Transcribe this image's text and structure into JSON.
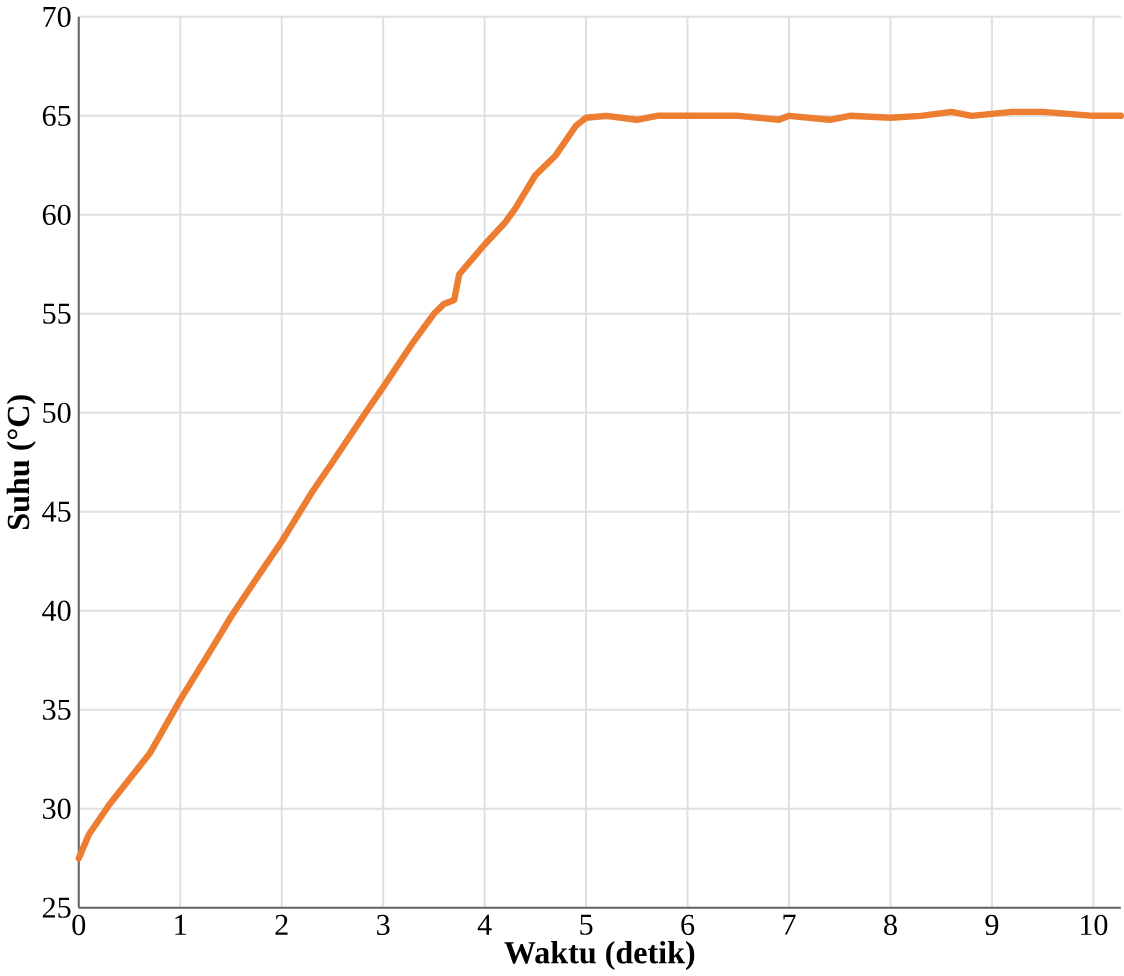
{
  "chart_data": {
    "type": "line",
    "xlabel": "Waktu (detik)",
    "ylabel": "Suhu (°C)",
    "xlim": [
      0,
      10.27
    ],
    "ylim": [
      25,
      70
    ],
    "xticks": [
      0,
      1,
      2,
      3,
      4,
      5,
      6,
      7,
      8,
      9,
      10
    ],
    "yticks": [
      25,
      30,
      35,
      40,
      45,
      50,
      55,
      60,
      65,
      70
    ],
    "grid": true,
    "marker": "none",
    "line_style": "solid",
    "series": [
      {
        "color": "#ed7d31",
        "x": [
          0,
          0.1,
          0.3,
          0.5,
          0.7,
          1,
          1.3,
          1.5,
          1.8,
          2,
          2.3,
          2.5,
          2.8,
          3,
          3.3,
          3.5,
          3.6,
          3.7,
          3.75,
          3.8,
          4,
          4.2,
          4.3,
          4.5,
          4.7,
          4.9,
          5,
          5.2,
          5.5,
          5.7,
          6,
          6.5,
          6.9,
          7,
          7.4,
          7.6,
          8,
          8.3,
          8.6,
          8.8,
          9.2,
          9.5,
          10,
          10.27
        ],
        "values": [
          27.5,
          28.7,
          30.2,
          31.5,
          32.8,
          35.5,
          38,
          39.7,
          42,
          43.5,
          46,
          47.5,
          49.8,
          51.3,
          53.6,
          55,
          55.5,
          55.7,
          57,
          57.3,
          58.5,
          59.6,
          60.3,
          62,
          63,
          64.5,
          64.9,
          65,
          64.8,
          65,
          65,
          65,
          64.8,
          65,
          64.8,
          65,
          64.9,
          65,
          65.2,
          65,
          65.2,
          65.2,
          65,
          65
        ]
      }
    ]
  }
}
